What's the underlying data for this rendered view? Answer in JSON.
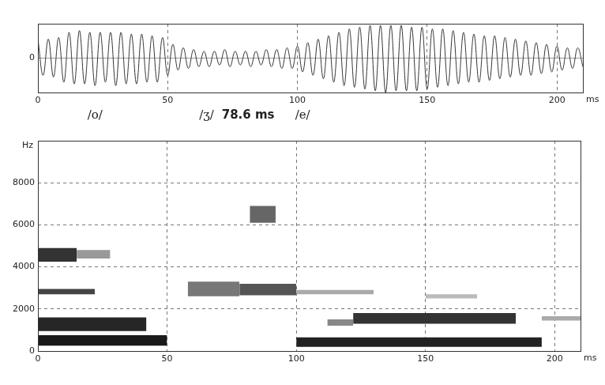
{
  "chart_data": [
    {
      "type": "line",
      "color": "#333333",
      "x": [
        0,
        2,
        4,
        6,
        8,
        10,
        12,
        14,
        16,
        18,
        20,
        22,
        24,
        26,
        28,
        30,
        32,
        34,
        36,
        38,
        40,
        42,
        44,
        46,
        48,
        50,
        52,
        54,
        56,
        58,
        60,
        62,
        64,
        66,
        68,
        70,
        72,
        74,
        76,
        78,
        80,
        82,
        84,
        86,
        88,
        90,
        92,
        94,
        96,
        98,
        100,
        102,
        104,
        106,
        108,
        110,
        112,
        114,
        116,
        118,
        120,
        122,
        124,
        126,
        128,
        130,
        132,
        134,
        136,
        138,
        140,
        142,
        144,
        146,
        148,
        150,
        152,
        154,
        156,
        158,
        160,
        162,
        164,
        166,
        168,
        170,
        172,
        174,
        176,
        178,
        180,
        182,
        184,
        186,
        188,
        190,
        192,
        194,
        196,
        198,
        200,
        202,
        204,
        206,
        208,
        210
      ],
      "values": [
        0.55,
        -0.5,
        0.55,
        -0.55,
        0.6,
        -0.7,
        0.75,
        -0.75,
        0.8,
        -0.75,
        0.75,
        -0.8,
        0.75,
        -0.7,
        0.75,
        -0.8,
        0.75,
        -0.75,
        0.7,
        -0.75,
        0.7,
        -0.7,
        0.65,
        -0.7,
        0.6,
        -0.5,
        0.4,
        -0.35,
        0.3,
        -0.3,
        0.25,
        -0.25,
        0.2,
        -0.25,
        0.2,
        -0.2,
        0.25,
        -0.25,
        0.2,
        -0.2,
        0.2,
        -0.25,
        0.2,
        -0.2,
        0.25,
        -0.25,
        0.25,
        -0.3,
        0.3,
        -0.3,
        0.35,
        -0.4,
        0.45,
        -0.5,
        0.55,
        -0.6,
        0.65,
        -0.7,
        0.75,
        -0.8,
        0.85,
        -0.85,
        0.9,
        -0.9,
        0.95,
        -0.95,
        0.95,
        -1.0,
        0.95,
        -0.95,
        0.95,
        -0.95,
        0.9,
        -0.95,
        0.9,
        -0.9,
        0.85,
        -0.85,
        0.85,
        -0.8,
        0.8,
        -0.75,
        0.75,
        -0.7,
        0.7,
        -0.7,
        0.65,
        -0.65,
        0.65,
        -0.6,
        0.6,
        -0.55,
        0.55,
        -0.5,
        0.5,
        -0.5,
        0.45,
        -0.45,
        0.4,
        -0.4,
        0.35,
        -0.35,
        0.3,
        -0.3,
        0.3,
        -0.25
      ],
      "xlim": [
        0,
        210
      ],
      "xticks": [
        0,
        50,
        100,
        150,
        200
      ],
      "ylim": [
        -1,
        1
      ],
      "yticks": [
        0
      ],
      "x_label": "ms",
      "grid": true,
      "annotations": [
        {
          "text": "/o/",
          "x": 22
        },
        {
          "text": "/ʒ/",
          "x": 65
        },
        {
          "text": "78.6 ms",
          "x": 81
        },
        {
          "text": "/e/",
          "x": 102
        }
      ]
    },
    {
      "type": "spectrogram",
      "bands": [
        {
          "x": [
            0,
            50
          ],
          "y": [
            250,
            750
          ],
          "color": "#1a1a1a"
        },
        {
          "x": [
            0,
            42
          ],
          "y": [
            950,
            1600
          ],
          "color": "#262626"
        },
        {
          "x": [
            0,
            22
          ],
          "y": [
            2700,
            2950
          ],
          "color": "#444444"
        },
        {
          "x": [
            0,
            15
          ],
          "y": [
            4250,
            4900
          ],
          "color": "#333333"
        },
        {
          "x": [
            15,
            28
          ],
          "y": [
            4400,
            4800
          ],
          "color": "#999999"
        },
        {
          "x": [
            58,
            78
          ],
          "y": [
            2600,
            3300
          ],
          "color": "#777777"
        },
        {
          "x": [
            78,
            100
          ],
          "y": [
            2650,
            3200
          ],
          "color": "#555555"
        },
        {
          "x": [
            100,
            130
          ],
          "y": [
            2700,
            2900
          ],
          "color": "#aaaaaa"
        },
        {
          "x": [
            82,
            92
          ],
          "y": [
            6100,
            6900
          ],
          "color": "#666666"
        },
        {
          "x": [
            100,
            195
          ],
          "y": [
            200,
            650
          ],
          "color": "#222222"
        },
        {
          "x": [
            122,
            185
          ],
          "y": [
            1300,
            1800
          ],
          "color": "#333333"
        },
        {
          "x": [
            112,
            122
          ],
          "y": [
            1200,
            1500
          ],
          "color": "#888888"
        },
        {
          "x": [
            150,
            170
          ],
          "y": [
            2500,
            2700
          ],
          "color": "#bbbbbb"
        },
        {
          "x": [
            195,
            210
          ],
          "y": [
            1450,
            1650
          ],
          "color": "#aaaaaa"
        }
      ],
      "xlim": [
        0,
        210
      ],
      "xticks": [
        0,
        50,
        100,
        150,
        200
      ],
      "ylim": [
        0,
        10000
      ],
      "yticks": [
        0,
        2000,
        4000,
        6000,
        8000
      ],
      "x_label": "ms",
      "y_label": "Hz",
      "grid": true
    }
  ]
}
